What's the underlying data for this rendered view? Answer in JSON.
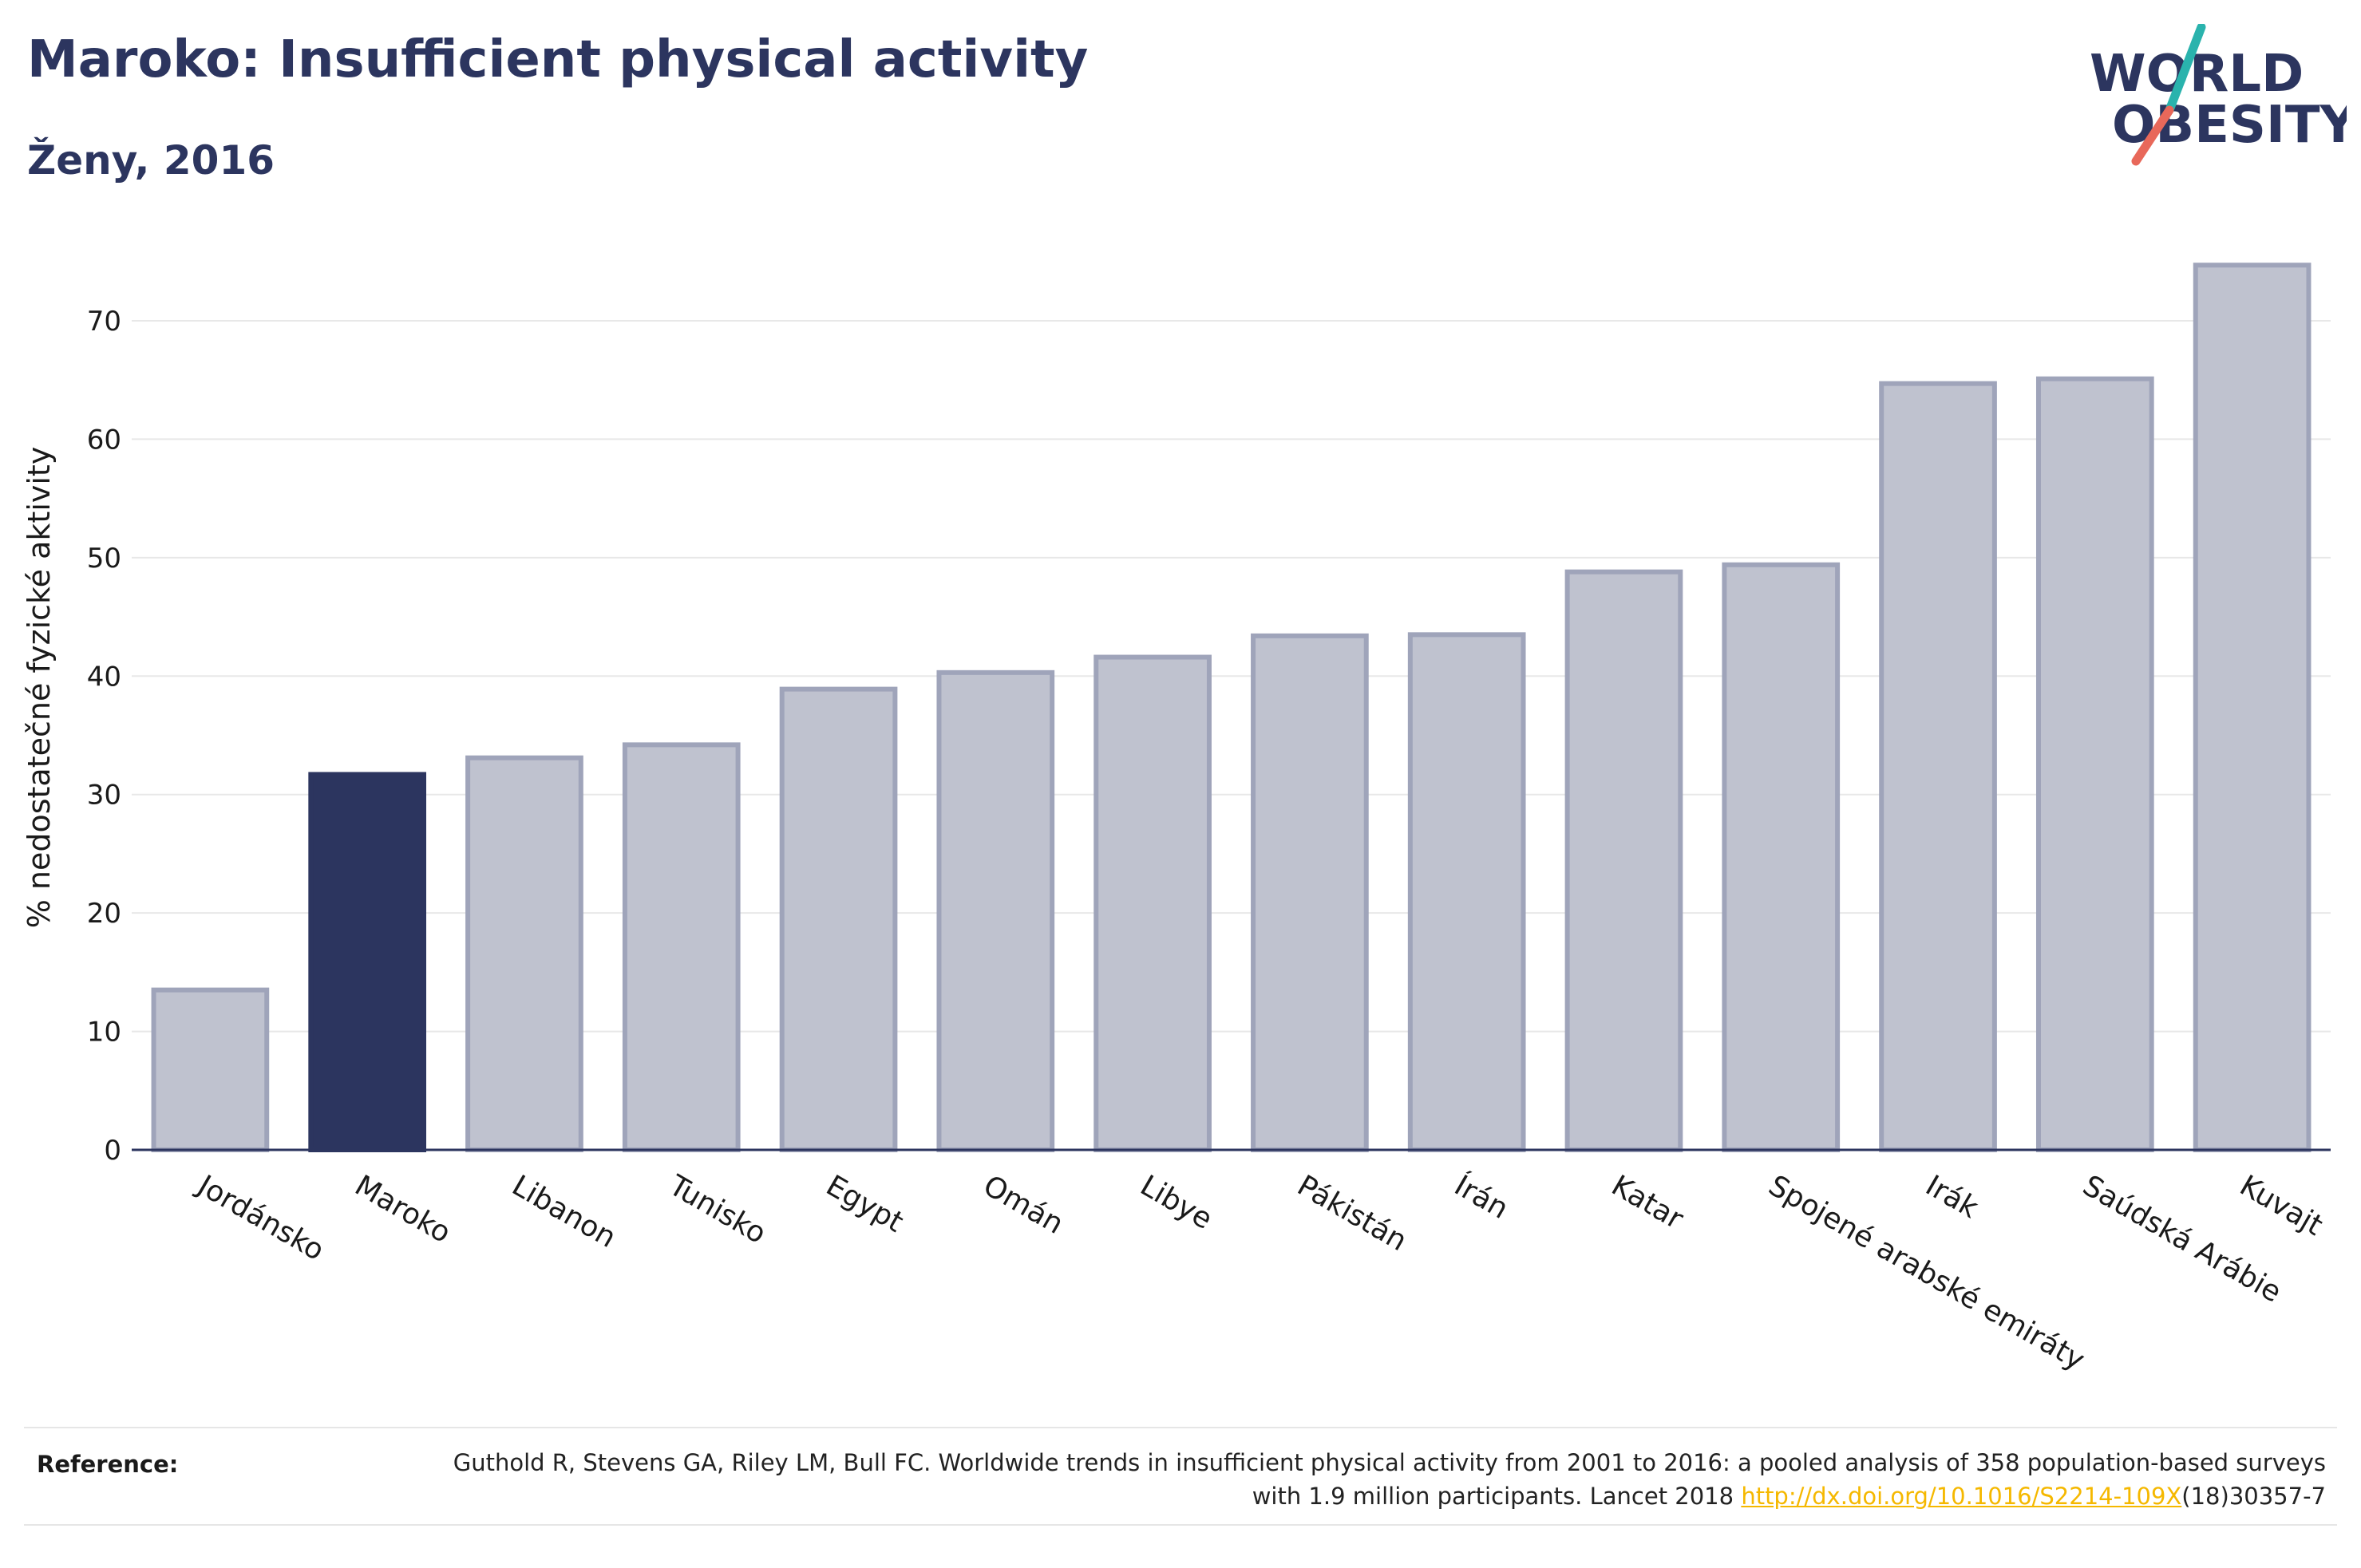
{
  "header": {
    "title": "Maroko: Insufficient physical activity",
    "subtitle": "Ženy, 2016"
  },
  "logo": {
    "line1": "WORLD",
    "line2": "OBESITY",
    "colors": {
      "text": "#2c355f",
      "slash_top": "#2ab3ad",
      "slash_bottom": "#e8685a"
    }
  },
  "colors": {
    "highlight": "#2c355f",
    "bar": "#bfc2cf",
    "bar_border": "#9fa4ba",
    "axis": "#2c355f",
    "grid": "#e8e8e8",
    "link": "#f5b800"
  },
  "chart_data": {
    "type": "bar",
    "title": "Maroko: Insufficient physical activity",
    "subtitle": "Ženy, 2016",
    "xlabel": "",
    "ylabel": "% nedostatečné fyzické aktivity",
    "ylim": [
      0,
      77
    ],
    "yticks": [
      0,
      10,
      20,
      30,
      40,
      50,
      60,
      70
    ],
    "grid": true,
    "highlight": "Maroko",
    "categories": [
      "Jordánsko",
      "Maroko",
      "Libanon",
      "Tunisko",
      "Egypt",
      "Omán",
      "Libye",
      "Pákistán",
      "Írán",
      "Katar",
      "Spojené arabské emiráty",
      "Irák",
      "Saúdská Arábie",
      "Kuvajt"
    ],
    "values": [
      13.5,
      31.7,
      33.1,
      34.2,
      38.9,
      40.3,
      41.6,
      43.4,
      43.5,
      48.8,
      49.4,
      64.7,
      65.1,
      74.7
    ]
  },
  "footer": {
    "reference_label": "Reference:",
    "reference_text": "Guthold R, Stevens GA, Riley LM, Bull FC. Worldwide trends in insufficient physical activity from 2001 to 2016: a pooled analysis of 358 population-based surveys with 1.9 million participants. Lancet 2018",
    "reference_link": "http://dx.doi.org/10.1016/S2214-109X",
    "reference_suffix": "(18)30357-7"
  }
}
